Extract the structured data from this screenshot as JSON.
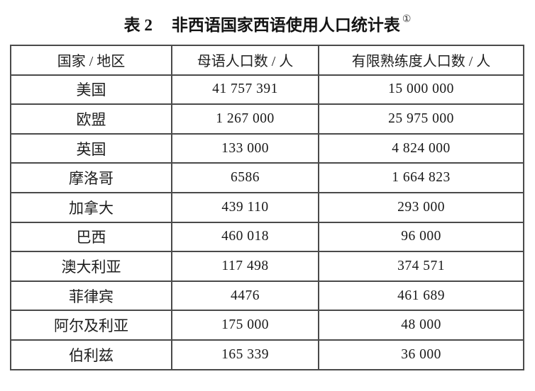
{
  "title": {
    "label": "表 2",
    "text": "非西语国家西语使用人口统计表",
    "footnote_marker": "①"
  },
  "table": {
    "columns": [
      "国家 / 地区",
      "母语人口数 / 人",
      "有限熟练度人口数 / 人"
    ],
    "rows": [
      {
        "country": "美国",
        "native": "41 757 391",
        "limited": "15 000 000"
      },
      {
        "country": "欧盟",
        "native": "1 267 000",
        "limited": "25 975 000"
      },
      {
        "country": "英国",
        "native": "133 000",
        "limited": "4 824 000"
      },
      {
        "country": "摩洛哥",
        "native": "6586",
        "limited": "1 664 823"
      },
      {
        "country": "加拿大",
        "native": "439 110",
        "limited": "293 000"
      },
      {
        "country": "巴西",
        "native": "460 018",
        "limited": "96 000"
      },
      {
        "country": "澳大利亚",
        "native": "117 498",
        "limited": "374 571"
      },
      {
        "country": "菲律宾",
        "native": "4476",
        "limited": "461 689"
      },
      {
        "country": "阿尔及利亚",
        "native": "175 000",
        "limited": "48 000"
      },
      {
        "country": "伯利兹",
        "native": "165 339",
        "limited": "36 000"
      }
    ]
  },
  "colors": {
    "ink": "#1f1f1f",
    "border": "#4a4a4a",
    "background": "#ffffff"
  }
}
